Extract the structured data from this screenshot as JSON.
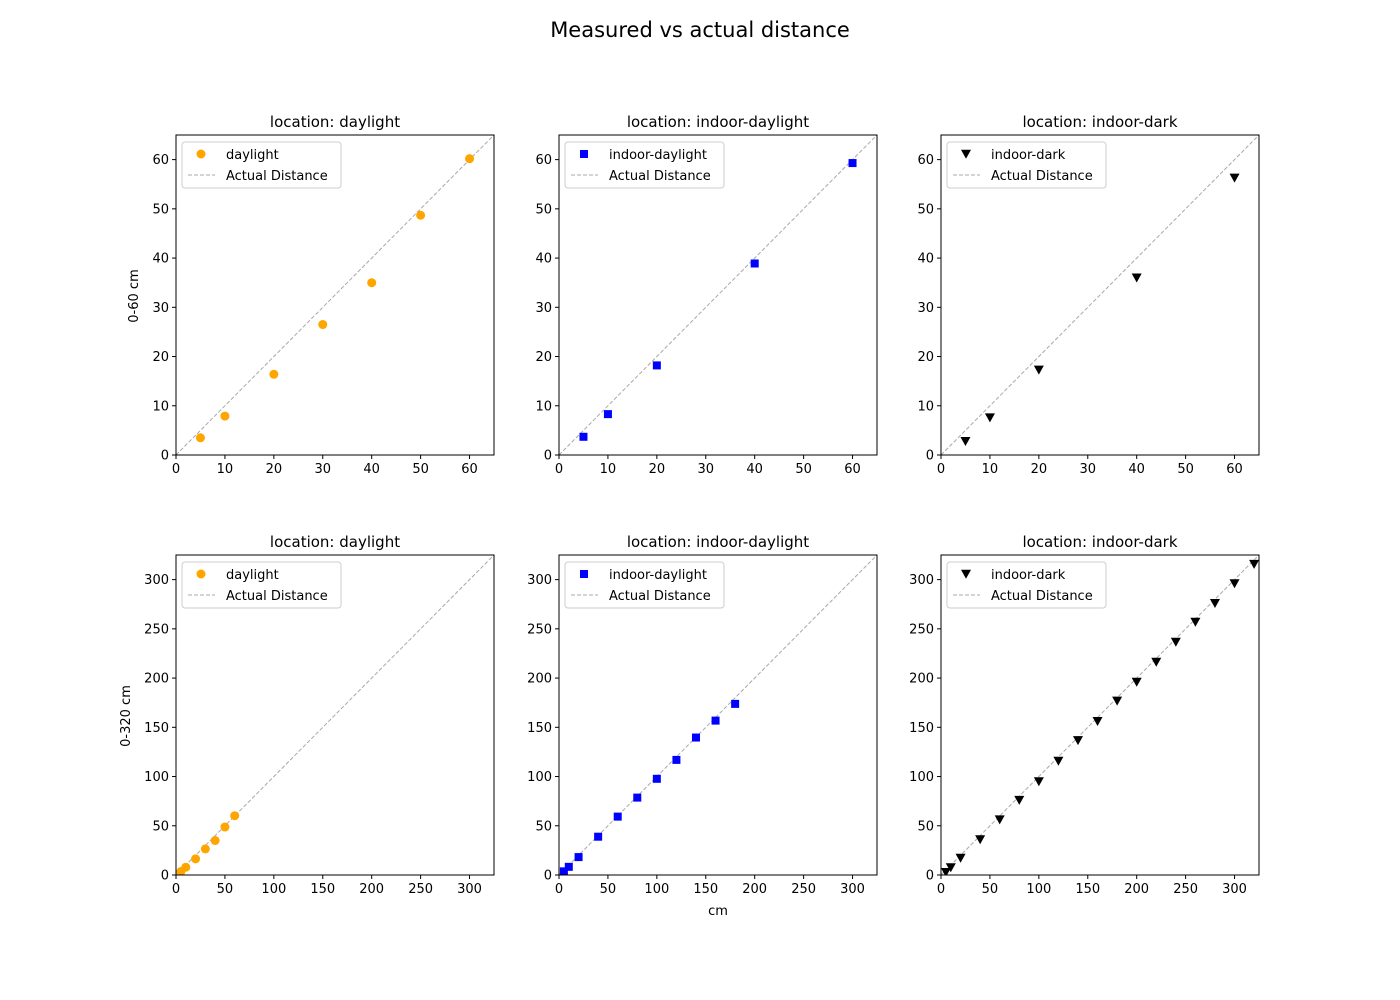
{
  "figure": {
    "title": "Measured vs actual distance",
    "xlabel": "cm",
    "row_labels": [
      "0-60 cm",
      "0-320 cm"
    ]
  },
  "colors": {
    "daylight": "#ffa500",
    "indoor-daylight": "#0000ff",
    "indoor-dark": "#000000",
    "reference": "#a9a9a9"
  },
  "chart_data": [
    {
      "type": "scatter",
      "title": "location: daylight",
      "xlim": [
        0,
        65
      ],
      "ylim": [
        0,
        65
      ],
      "xticks": [
        0,
        10,
        20,
        30,
        40,
        50,
        60
      ],
      "yticks": [
        0,
        10,
        20,
        30,
        40,
        50,
        60
      ],
      "grid": false,
      "legend": "upper-left",
      "series": [
        {
          "name": "daylight",
          "marker": "circle",
          "color": "#ffa500",
          "x": [
            5,
            10,
            20,
            30,
            40,
            50,
            60
          ],
          "y": [
            3.5,
            7.9,
            16.4,
            26.5,
            35.0,
            48.7,
            60.2
          ]
        },
        {
          "name": "Actual Distance",
          "style": "dashed",
          "color": "#a9a9a9",
          "x": [
            0,
            65
          ],
          "y": [
            0,
            65
          ]
        }
      ]
    },
    {
      "type": "scatter",
      "title": "location: indoor-daylight",
      "xlim": [
        0,
        65
      ],
      "ylim": [
        0,
        65
      ],
      "xticks": [
        0,
        10,
        20,
        30,
        40,
        50,
        60
      ],
      "yticks": [
        0,
        10,
        20,
        30,
        40,
        50,
        60
      ],
      "grid": false,
      "legend": "upper-left",
      "series": [
        {
          "name": "indoor-daylight",
          "marker": "square",
          "color": "#0000ff",
          "x": [
            5,
            10,
            20,
            40,
            60
          ],
          "y": [
            3.7,
            8.3,
            18.2,
            38.9,
            59.3
          ]
        },
        {
          "name": "Actual Distance",
          "style": "dashed",
          "color": "#a9a9a9",
          "x": [
            0,
            65
          ],
          "y": [
            0,
            65
          ]
        }
      ]
    },
    {
      "type": "scatter",
      "title": "location: indoor-dark",
      "xlim": [
        0,
        65
      ],
      "ylim": [
        0,
        65
      ],
      "xticks": [
        0,
        10,
        20,
        30,
        40,
        50,
        60
      ],
      "yticks": [
        0,
        10,
        20,
        30,
        40,
        50,
        60
      ],
      "grid": false,
      "legend": "upper-left",
      "series": [
        {
          "name": "indoor-dark",
          "marker": "triangle-down",
          "color": "#000000",
          "x": [
            5,
            10,
            20,
            40,
            60
          ],
          "y": [
            2.8,
            7.6,
            17.3,
            36.0,
            56.3
          ]
        },
        {
          "name": "Actual Distance",
          "style": "dashed",
          "color": "#a9a9a9",
          "x": [
            0,
            65
          ],
          "y": [
            0,
            65
          ]
        }
      ]
    },
    {
      "type": "scatter",
      "title": "location: daylight",
      "xlim": [
        0,
        325
      ],
      "ylim": [
        0,
        325
      ],
      "xticks": [
        0,
        50,
        100,
        150,
        200,
        250,
        300
      ],
      "yticks": [
        0,
        50,
        100,
        150,
        200,
        250,
        300
      ],
      "grid": false,
      "legend": "upper-left",
      "series": [
        {
          "name": "daylight",
          "marker": "circle",
          "color": "#ffa500",
          "x": [
            5,
            10,
            20,
            30,
            40,
            50,
            60
          ],
          "y": [
            3.5,
            7.9,
            16.4,
            26.5,
            35.0,
            48.7,
            60.2
          ]
        },
        {
          "name": "Actual Distance",
          "style": "dashed",
          "color": "#a9a9a9",
          "x": [
            0,
            325
          ],
          "y": [
            0,
            325
          ]
        }
      ]
    },
    {
      "type": "scatter",
      "title": "location: indoor-daylight",
      "xlim": [
        0,
        325
      ],
      "ylim": [
        0,
        325
      ],
      "xticks": [
        0,
        50,
        100,
        150,
        200,
        250,
        300
      ],
      "yticks": [
        0,
        50,
        100,
        150,
        200,
        250,
        300
      ],
      "grid": false,
      "legend": "upper-left",
      "series": [
        {
          "name": "indoor-daylight",
          "marker": "square",
          "color": "#0000ff",
          "x": [
            5,
            10,
            20,
            40,
            60,
            80,
            100,
            120,
            140,
            160,
            180
          ],
          "y": [
            3.7,
            8.3,
            18.2,
            38.9,
            59.3,
            78.6,
            97.7,
            116.9,
            139.6,
            156.8,
            173.8
          ]
        },
        {
          "name": "Actual Distance",
          "style": "dashed",
          "color": "#a9a9a9",
          "x": [
            0,
            325
          ],
          "y": [
            0,
            325
          ]
        }
      ]
    },
    {
      "type": "scatter",
      "title": "location: indoor-dark",
      "xlim": [
        0,
        325
      ],
      "ylim": [
        0,
        325
      ],
      "xticks": [
        0,
        50,
        100,
        150,
        200,
        250,
        300
      ],
      "yticks": [
        0,
        50,
        100,
        150,
        200,
        250,
        300
      ],
      "grid": false,
      "legend": "upper-left",
      "series": [
        {
          "name": "indoor-dark",
          "marker": "triangle-down",
          "color": "#000000",
          "x": [
            5,
            10,
            20,
            40,
            60,
            80,
            100,
            120,
            140,
            160,
            180,
            200,
            220,
            240,
            260,
            280,
            300,
            320
          ],
          "y": [
            2.8,
            7.6,
            17.3,
            36.0,
            56.3,
            76.0,
            95.0,
            115.8,
            136.7,
            156.2,
            176.9,
            196.0,
            216.3,
            236.7,
            256.9,
            276.0,
            296.0,
            315.7
          ]
        },
        {
          "name": "Actual Distance",
          "style": "dashed",
          "color": "#a9a9a9",
          "x": [
            0,
            325
          ],
          "y": [
            0,
            325
          ]
        }
      ]
    }
  ]
}
